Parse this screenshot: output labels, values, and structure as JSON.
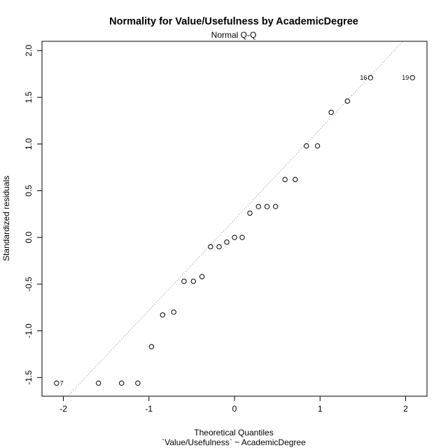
{
  "chart_data": {
    "type": "scatter",
    "title": "Normality for Value/Usefulness by AcademicDegree",
    "subtitle": "Normal Q-Q",
    "xlabel": "Theoretical Quantiles",
    "xlabel2": "`Value/Usefulness` ~ AcademicDegree",
    "ylabel": "Standardized residuals",
    "xlim": [
      -2.25,
      2.25
    ],
    "ylim": [
      -1.7,
      2.1
    ],
    "x_ticks": [
      -2,
      -1,
      0,
      1,
      2
    ],
    "y_ticks": [
      -1.5,
      -1.0,
      -0.5,
      0.0,
      0.5,
      1.0,
      1.5,
      2.0
    ],
    "x_tick_labels": [
      "-2",
      "-1",
      "0",
      "1",
      "2"
    ],
    "y_tick_labels": [
      "-1.5",
      "-1.0",
      "-0.5",
      "0.0",
      "0.5",
      "1.0",
      "1.5",
      "2.0"
    ],
    "reference_line": {
      "slope": 0.97,
      "intercept": 0.19
    },
    "points": [
      {
        "x": -2.08,
        "y": -1.56,
        "label": "7"
      },
      {
        "x": -1.59,
        "y": -1.56,
        "label": ""
      },
      {
        "x": -1.32,
        "y": -1.56,
        "label": ""
      },
      {
        "x": -1.13,
        "y": -1.56,
        "label": ""
      },
      {
        "x": -0.97,
        "y": -1.17,
        "label": ""
      },
      {
        "x": -0.84,
        "y": -0.83,
        "label": ""
      },
      {
        "x": -0.71,
        "y": -0.8,
        "label": ""
      },
      {
        "x": -0.59,
        "y": -0.47,
        "label": ""
      },
      {
        "x": -0.48,
        "y": -0.47,
        "label": ""
      },
      {
        "x": -0.38,
        "y": -0.42,
        "label": ""
      },
      {
        "x": -0.28,
        "y": -0.1,
        "label": ""
      },
      {
        "x": -0.18,
        "y": -0.1,
        "label": ""
      },
      {
        "x": -0.09,
        "y": -0.05,
        "label": ""
      },
      {
        "x": 0.0,
        "y": 0.0,
        "label": ""
      },
      {
        "x": 0.09,
        "y": 0.0,
        "label": ""
      },
      {
        "x": 0.18,
        "y": 0.26,
        "label": ""
      },
      {
        "x": 0.28,
        "y": 0.33,
        "label": ""
      },
      {
        "x": 0.38,
        "y": 0.33,
        "label": ""
      },
      {
        "x": 0.48,
        "y": 0.33,
        "label": ""
      },
      {
        "x": 0.59,
        "y": 0.62,
        "label": ""
      },
      {
        "x": 0.71,
        "y": 0.62,
        "label": ""
      },
      {
        "x": 0.84,
        "y": 0.98,
        "label": ""
      },
      {
        "x": 0.97,
        "y": 0.98,
        "label": ""
      },
      {
        "x": 1.13,
        "y": 1.34,
        "label": ""
      },
      {
        "x": 1.32,
        "y": 1.46,
        "label": ""
      },
      {
        "x": 1.59,
        "y": 1.71,
        "label": "16"
      },
      {
        "x": 2.08,
        "y": 1.71,
        "label": "19"
      }
    ]
  }
}
